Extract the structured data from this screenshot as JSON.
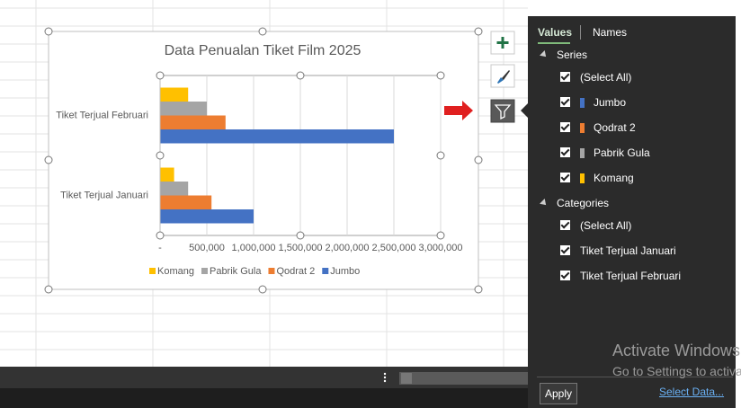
{
  "chart_data": {
    "type": "bar",
    "orientation": "horizontal",
    "title": "Data Penualan Tiket Film 2025",
    "categories": [
      "Tiket Terjual Januari",
      "Tiket Terjual Februari"
    ],
    "series": [
      {
        "name": "Jumbo",
        "color": "#4472c4",
        "values": [
          1000000,
          2500000
        ]
      },
      {
        "name": "Qodrat 2",
        "color": "#ed7d31",
        "values": [
          550000,
          700000
        ]
      },
      {
        "name": "Pabrik Gula",
        "color": "#a5a5a5",
        "values": [
          300000,
          500000
        ]
      },
      {
        "name": "Komang",
        "color": "#ffc000",
        "values": [
          150000,
          300000
        ]
      }
    ],
    "xlim": [
      0,
      3000000
    ],
    "xticks": [
      {
        "value": 0,
        "label": "-"
      },
      {
        "value": 500000,
        "label": "500,000"
      },
      {
        "value": 1000000,
        "label": "1,000,000"
      },
      {
        "value": 1500000,
        "label": "1,500,000"
      },
      {
        "value": 2000000,
        "label": "2,000,000"
      },
      {
        "value": 2500000,
        "label": "2,500,000"
      },
      {
        "value": 3000000,
        "label": "3,000,000"
      }
    ],
    "grid": true,
    "legend": "bottom"
  },
  "panel": {
    "tabs": [
      "Values",
      "Names"
    ],
    "series_heading": "Series",
    "select_all": "(Select All)",
    "categories_heading": "Categories",
    "apply": "Apply",
    "select_data": "Select Data..."
  },
  "watermark": {
    "title": "Activate Windows",
    "subtitle": "Go to Settings to activate Windows."
  }
}
